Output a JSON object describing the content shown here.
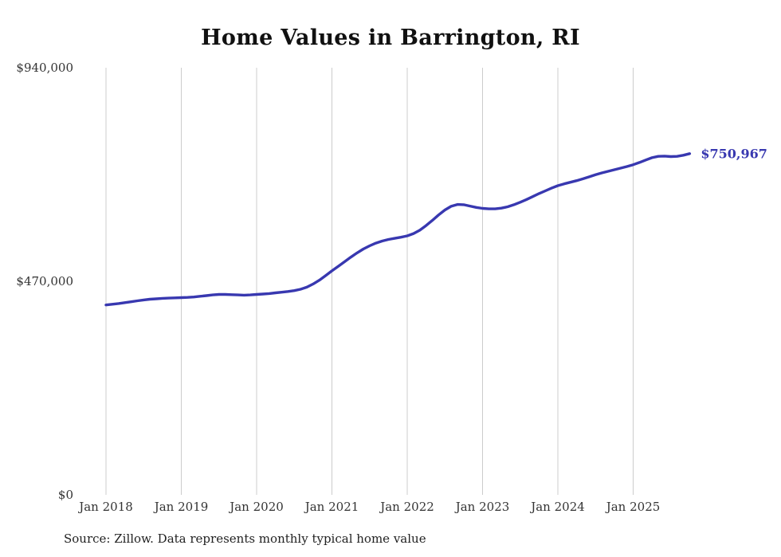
{
  "source_note": "Source: Zillow. Data represents monthly typical home value",
  "chart_data": {
    "type": "line",
    "title": "Home Values in Barrington, RI",
    "xlabel": "",
    "ylabel": "",
    "ylim": [
      0,
      940000
    ],
    "y_ticks": [
      0,
      470000,
      940000
    ],
    "y_tick_labels": [
      "$0",
      "$470,000",
      "$940,000"
    ],
    "x_tick_labels": [
      "Jan 2018",
      "Jan 2019",
      "Jan 2020",
      "Jan 2021",
      "Jan 2022",
      "Jan 2023",
      "Jan 2024",
      "Jan 2025"
    ],
    "end_label": "$750,967",
    "end_value": 750967,
    "line_color": "#3838b0",
    "grid_color": "#cccccc",
    "grid": "vertical-only",
    "legend": "none",
    "series": [
      {
        "name": "Typical home value",
        "x": [
          "2018-01",
          "2018-02",
          "2018-03",
          "2018-04",
          "2018-05",
          "2018-06",
          "2018-07",
          "2018-08",
          "2018-09",
          "2018-10",
          "2018-11",
          "2018-12",
          "2019-01",
          "2019-02",
          "2019-03",
          "2019-04",
          "2019-05",
          "2019-06",
          "2019-07",
          "2019-08",
          "2019-09",
          "2019-10",
          "2019-11",
          "2019-12",
          "2020-01",
          "2020-02",
          "2020-03",
          "2020-04",
          "2020-05",
          "2020-06",
          "2020-07",
          "2020-08",
          "2020-09",
          "2020-10",
          "2020-11",
          "2020-12",
          "2021-01",
          "2021-02",
          "2021-03",
          "2021-04",
          "2021-05",
          "2021-06",
          "2021-07",
          "2021-08",
          "2021-09",
          "2021-10",
          "2021-11",
          "2021-12",
          "2022-01",
          "2022-02",
          "2022-03",
          "2022-04",
          "2022-05",
          "2022-06",
          "2022-07",
          "2022-08",
          "2022-09",
          "2022-10",
          "2022-11",
          "2022-12",
          "2023-01",
          "2023-02",
          "2023-03",
          "2023-04",
          "2023-05",
          "2023-06",
          "2023-07",
          "2023-08",
          "2023-09",
          "2023-10",
          "2023-11",
          "2023-12",
          "2024-01",
          "2024-02",
          "2024-03",
          "2024-04",
          "2024-05",
          "2024-06",
          "2024-07",
          "2024-08",
          "2024-09",
          "2024-10",
          "2024-11",
          "2024-12",
          "2025-01",
          "2025-02",
          "2025-03",
          "2025-04",
          "2025-05",
          "2025-06",
          "2025-07",
          "2025-08",
          "2025-09",
          "2025-10"
        ],
        "values": [
          418000,
          419500,
          421000,
          423000,
          425000,
          427000,
          429000,
          430500,
          431500,
          432500,
          433000,
          433500,
          434000,
          434500,
          435500,
          437000,
          438500,
          440000,
          441000,
          441000,
          440500,
          440000,
          439500,
          440000,
          441000,
          442000,
          443000,
          444500,
          446000,
          447500,
          449500,
          452500,
          457000,
          464000,
          472500,
          482500,
          493000,
          503000,
          513000,
          523000,
          532500,
          541000,
          548000,
          554000,
          558500,
          562000,
          564500,
          567000,
          570000,
          575000,
          582500,
          592500,
          604000,
          616000,
          627000,
          635000,
          639000,
          638500,
          635500,
          632500,
          630500,
          629500,
          629500,
          631000,
          634000,
          638500,
          644000,
          650000,
          656500,
          663000,
          669000,
          675000,
          680500,
          684500,
          688000,
          691500,
          695500,
          700000,
          704500,
          708500,
          712000,
          715500,
          719000,
          722500,
          726500,
          731500,
          737000,
          742000,
          745000,
          745500,
          744500,
          745000,
          747500,
          750967
        ]
      }
    ]
  }
}
